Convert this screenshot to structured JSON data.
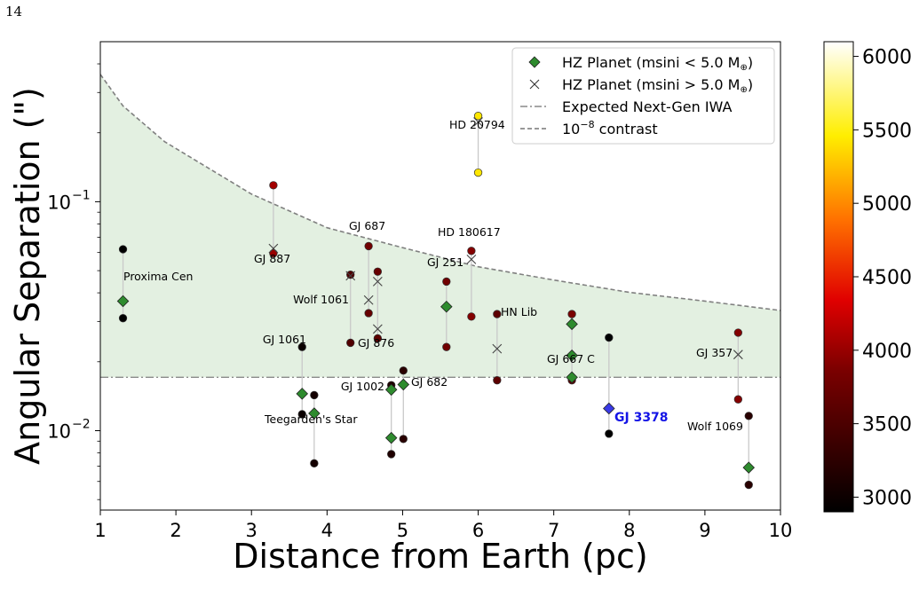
{
  "page": {
    "number": "14"
  },
  "chart_data": {
    "type": "scatter",
    "xlabel": "Distance from Earth (pc)",
    "ylabel": "Angular Separation (\")",
    "xlim": [
      1,
      10
    ],
    "ylim": [
      0.0045,
      0.5
    ],
    "yscale": "log",
    "xticks": [
      1,
      2,
      3,
      4,
      5,
      6,
      7,
      8,
      9,
      10
    ],
    "yticks": [
      {
        "value": 0.1,
        "base": "10",
        "exp": "−1"
      },
      {
        "value": 0.01,
        "base": "10",
        "exp": "−2"
      }
    ],
    "grid": false,
    "legend": {
      "placement": "top-right",
      "entries": [
        {
          "pre": "HZ Planet (msini < 5.0 M",
          "post": ")",
          "marker": "diamond",
          "color": "#2e8b2e"
        },
        {
          "pre": "HZ Planet (msini > 5.0 M",
          "post": ")",
          "marker": "x",
          "color": "#333333"
        },
        {
          "pre": "Expected Next-Gen IWA",
          "post": "",
          "marker": "dashdot",
          "color": "#888888"
        },
        {
          "pre": "10",
          "sup": "−8",
          "post": " contrast",
          "marker": "dashed",
          "color": "#777777"
        }
      ]
    },
    "colorbar": {
      "ticks": [
        3000,
        3500,
        4000,
        4500,
        5000,
        5500,
        6000
      ],
      "range": [
        2900,
        6100
      ]
    },
    "iwa": 0.0171,
    "contrast_curve": [
      [
        1.0,
        0.36
      ],
      [
        1.3,
        0.262
      ],
      [
        1.85,
        0.183
      ],
      [
        3.0,
        0.108
      ],
      [
        4.0,
        0.077
      ],
      [
        5.0,
        0.063
      ],
      [
        6.0,
        0.052
      ],
      [
        7.0,
        0.0455
      ],
      [
        8.0,
        0.0402
      ],
      [
        9.0,
        0.0368
      ],
      [
        10.0,
        0.0335
      ]
    ],
    "stars": [
      {
        "name": "Proxima Cen",
        "x": 1.3,
        "planets": [
          {
            "y": 0.0368,
            "type": "diamond"
          }
        ],
        "inner": 0.031,
        "outer": 0.062,
        "inner_teff": 2900,
        "outer_teff": 2900
      },
      {
        "name": "GJ 887",
        "x": 3.29,
        "planets": [
          {
            "y": 0.0625,
            "type": "x"
          }
        ],
        "inner": 0.0595,
        "outer": 0.118,
        "inner_teff": 3650,
        "outer_teff": 3700
      },
      {
        "name": "GJ 1061",
        "x": 3.67,
        "planets": [
          {
            "y": 0.0145,
            "type": "diamond"
          }
        ],
        "inner": 0.0118,
        "outer": 0.0232,
        "inner_teff": 2950,
        "outer_teff": 2950
      },
      {
        "name": "Teegarden's Star",
        "x": 3.83,
        "planets": [
          {
            "y": 0.0119,
            "type": "diamond"
          }
        ],
        "inner": 0.0072,
        "outer": 0.0143,
        "inner_teff": 3000,
        "outer_teff": 3000
      },
      {
        "name": "Wolf 1061",
        "x": 4.31,
        "planets": [
          {
            "y": 0.0475,
            "type": "x"
          }
        ],
        "inner": 0.0242,
        "outer": 0.048,
        "inner_teff": 3300,
        "outer_teff": 3300
      },
      {
        "name": "GJ 687",
        "x": 4.55,
        "planets": [
          {
            "y": 0.0372,
            "type": "x"
          }
        ],
        "inner": 0.0326,
        "outer": 0.064,
        "inner_teff": 3400,
        "outer_teff": 3450
      },
      {
        "name": "GJ 876",
        "x": 4.67,
        "planets": [
          {
            "y": 0.0448,
            "type": "x"
          },
          {
            "y": 0.0278,
            "type": "x"
          }
        ],
        "inner": 0.0253,
        "outer": 0.0495,
        "inner_teff": 3350,
        "outer_teff": 3400
      },
      {
        "name": "GJ 1002",
        "x": 4.85,
        "planets": [
          {
            "y": 0.0151,
            "type": "diamond"
          },
          {
            "y": 0.0093,
            "type": "diamond"
          }
        ],
        "inner": 0.0079,
        "outer": 0.0158,
        "inner_teff": 3050,
        "outer_teff": 3050
      },
      {
        "name": "GJ 682",
        "x": 5.01,
        "planets": [
          {
            "y": 0.0159,
            "type": "diamond"
          }
        ],
        "inner": 0.0092,
        "outer": 0.0183,
        "inner_teff": 3100,
        "outer_teff": 3100
      },
      {
        "name": "GJ 251",
        "x": 5.58,
        "planets": [
          {
            "y": 0.0348,
            "type": "diamond"
          }
        ],
        "inner": 0.0232,
        "outer": 0.0448,
        "inner_teff": 3450,
        "outer_teff": 3450
      },
      {
        "name": "HD 180617",
        "x": 5.91,
        "planets": [
          {
            "y": 0.056,
            "type": "x"
          }
        ],
        "inner": 0.0315,
        "outer": 0.061,
        "inner_teff": 3550,
        "outer_teff": 3550
      },
      {
        "name": "HD 20794",
        "x": 6.0,
        "planets": [
          {
            "y": 0.223,
            "type": "x"
          }
        ],
        "inner": 0.134,
        "outer": 0.237,
        "inner_teff": 5400,
        "outer_teff": 5400
      },
      {
        "name": "HN Lib",
        "x": 6.25,
        "planets": [
          {
            "y": 0.0228,
            "type": "x"
          }
        ],
        "inner": 0.0166,
        "outer": 0.0323,
        "inner_teff": 3350,
        "outer_teff": 3350
      },
      {
        "name": "GJ 667 C",
        "x": 7.24,
        "planets": [
          {
            "y": 0.0292,
            "type": "diamond"
          },
          {
            "y": 0.0213,
            "type": "diamond"
          },
          {
            "y": 0.0171,
            "type": "diamond"
          }
        ],
        "inner": 0.0166,
        "outer": 0.0323,
        "inner_teff": 3350,
        "outer_teff": 3500
      },
      {
        "name": "GJ 3378",
        "x": 7.73,
        "planets": [
          {
            "y": 0.0125,
            "type": "diamond",
            "highlight": true
          }
        ],
        "inner": 0.0097,
        "outer": 0.0255,
        "inner_teff": 2900,
        "outer_teff": 2900
      },
      {
        "name": "GJ 357",
        "x": 9.44,
        "planets": [
          {
            "y": 0.0215,
            "type": "x"
          }
        ],
        "inner": 0.0137,
        "outer": 0.0268,
        "inner_teff": 3550,
        "outer_teff": 3550
      },
      {
        "name": "Wolf 1069",
        "x": 9.58,
        "planets": [
          {
            "y": 0.0069,
            "type": "diamond"
          }
        ],
        "inner": 0.0058,
        "outer": 0.0116,
        "inner_teff": 3100,
        "outer_teff": 3100
      }
    ]
  }
}
